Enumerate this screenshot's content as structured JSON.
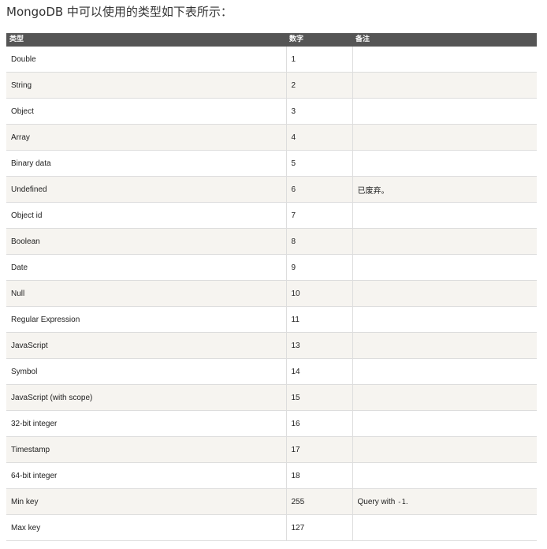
{
  "intro": "MongoDB 中可以使用的类型如下表所示：",
  "table": {
    "headers": [
      "类型",
      "数字",
      "备注"
    ],
    "rows": [
      {
        "type": "Double",
        "number": "1",
        "note": ""
      },
      {
        "type": "String",
        "number": "2",
        "note": ""
      },
      {
        "type": "Object",
        "number": "3",
        "note": ""
      },
      {
        "type": "Array",
        "number": "4",
        "note": ""
      },
      {
        "type": "Binary data",
        "number": "5",
        "note": ""
      },
      {
        "type": "Undefined",
        "number": "6",
        "note": "已废弃。"
      },
      {
        "type": "Object id",
        "number": "7",
        "note": ""
      },
      {
        "type": "Boolean",
        "number": "8",
        "note": ""
      },
      {
        "type": "Date",
        "number": "9",
        "note": ""
      },
      {
        "type": "Null",
        "number": "10",
        "note": ""
      },
      {
        "type": "Regular Expression",
        "number": "11",
        "note": ""
      },
      {
        "type": "JavaScript",
        "number": "13",
        "note": ""
      },
      {
        "type": "Symbol",
        "number": "14",
        "note": ""
      },
      {
        "type": "JavaScript (with scope)",
        "number": "15",
        "note": ""
      },
      {
        "type": "32-bit integer",
        "number": "16",
        "note": ""
      },
      {
        "type": "Timestamp",
        "number": "17",
        "note": ""
      },
      {
        "type": "64-bit integer",
        "number": "18",
        "note": ""
      },
      {
        "type": "Min key",
        "number": "255",
        "note": "Query with ",
        "note_code": "-1",
        "note_suffix": "."
      },
      {
        "type": "Max key",
        "number": "127",
        "note": ""
      }
    ]
  },
  "colors": {
    "header_bg": "#555555",
    "header_text": "#ffffff",
    "row_alt_bg": "#f6f4f0",
    "border": "#dddddd"
  }
}
